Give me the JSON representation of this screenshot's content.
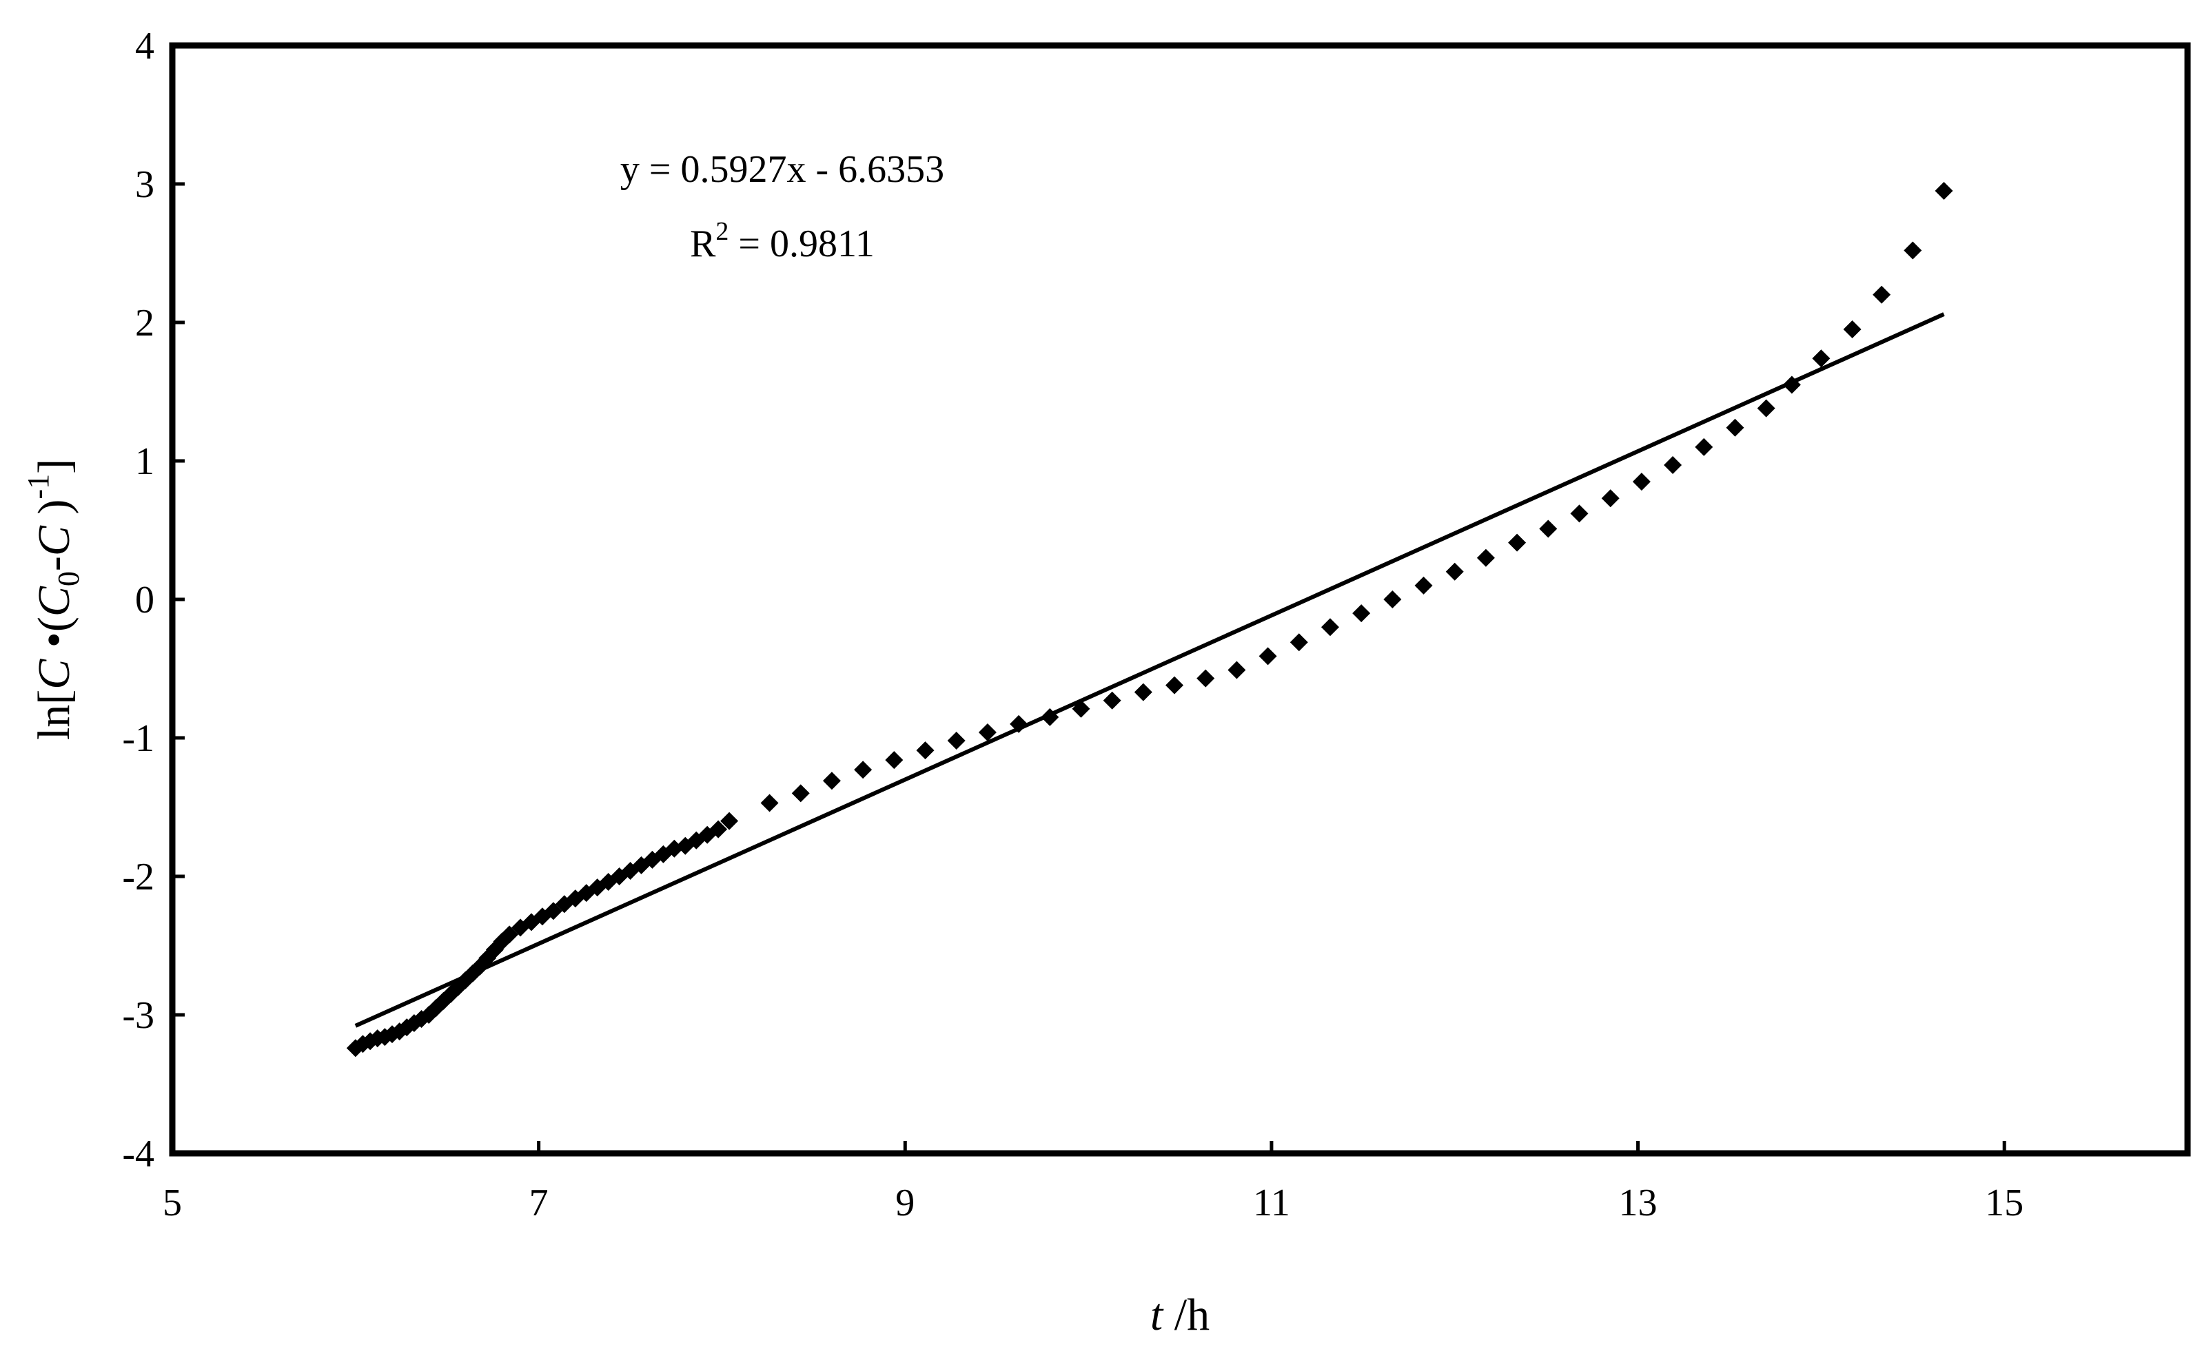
{
  "chart_data": {
    "type": "scatter",
    "title": "",
    "xlabel_italic": "t",
    "xlabel_rest": " /h",
    "ylabel": "ln[C•(C0-C)-1]",
    "xlim": [
      5,
      16
    ],
    "ylim": [
      -4,
      4
    ],
    "xticks": [
      5,
      7,
      9,
      11,
      13,
      15
    ],
    "yticks": [
      -4,
      -3,
      -2,
      -1,
      0,
      1,
      2,
      3,
      4
    ],
    "grid": false,
    "legend": "none",
    "marker": "diamond",
    "color": "#000000",
    "trendline": {
      "slope": 0.5927,
      "intercept": -6.6353,
      "x_range": [
        6.0,
        14.67
      ]
    },
    "equation": {
      "line1": "y = 0.5927x - 6.6353",
      "r2_label": "R",
      "r2_sup": "2",
      "r2_value": " = 0.9811"
    },
    "series": [
      {
        "x": [
          6.0,
          6.04,
          6.08,
          6.12,
          6.16,
          6.2,
          6.24,
          6.28,
          6.32,
          6.36,
          6.4,
          6.44,
          6.48,
          6.52,
          6.56,
          6.6,
          6.64,
          6.68,
          6.72,
          6.76,
          6.8,
          6.84,
          6.9,
          6.96,
          7.02,
          7.08,
          7.14,
          7.2,
          7.26,
          7.32,
          7.38,
          7.44,
          7.5,
          7.56,
          7.62,
          7.68,
          7.74,
          7.8,
          7.86,
          7.92,
          7.98,
          8.04,
          8.26,
          8.43,
          8.6,
          8.77,
          8.94,
          9.11,
          9.28,
          9.45,
          9.62,
          9.79,
          9.96,
          10.13,
          10.3,
          10.47,
          10.64,
          10.81,
          10.98,
          11.15,
          11.32,
          11.49,
          11.66,
          11.83,
          12.0,
          12.17,
          12.34,
          12.51,
          12.68,
          12.85,
          13.02,
          13.19,
          13.36,
          13.53,
          13.7,
          13.84,
          14.0,
          14.17,
          14.33,
          14.5,
          14.67
        ],
        "y": [
          -3.24,
          -3.21,
          -3.19,
          -3.17,
          -3.16,
          -3.14,
          -3.12,
          -3.09,
          -3.06,
          -3.03,
          -3.0,
          -2.95,
          -2.9,
          -2.85,
          -2.8,
          -2.75,
          -2.7,
          -2.65,
          -2.59,
          -2.53,
          -2.47,
          -2.42,
          -2.37,
          -2.33,
          -2.29,
          -2.25,
          -2.2,
          -2.16,
          -2.12,
          -2.08,
          -2.04,
          -2.0,
          -1.96,
          -1.92,
          -1.88,
          -1.84,
          -1.8,
          -1.78,
          -1.74,
          -1.7,
          -1.66,
          -1.6,
          -1.47,
          -1.4,
          -1.31,
          -1.23,
          -1.16,
          -1.09,
          -1.02,
          -0.96,
          -0.9,
          -0.85,
          -0.79,
          -0.73,
          -0.67,
          -0.62,
          -0.57,
          -0.51,
          -0.41,
          -0.31,
          -0.2,
          -0.1,
          0.0,
          0.1,
          0.2,
          0.3,
          0.41,
          0.51,
          0.62,
          0.73,
          0.85,
          0.97,
          1.1,
          1.24,
          1.38,
          1.55,
          1.74,
          1.95,
          2.2,
          2.52,
          2.95
        ]
      }
    ]
  }
}
